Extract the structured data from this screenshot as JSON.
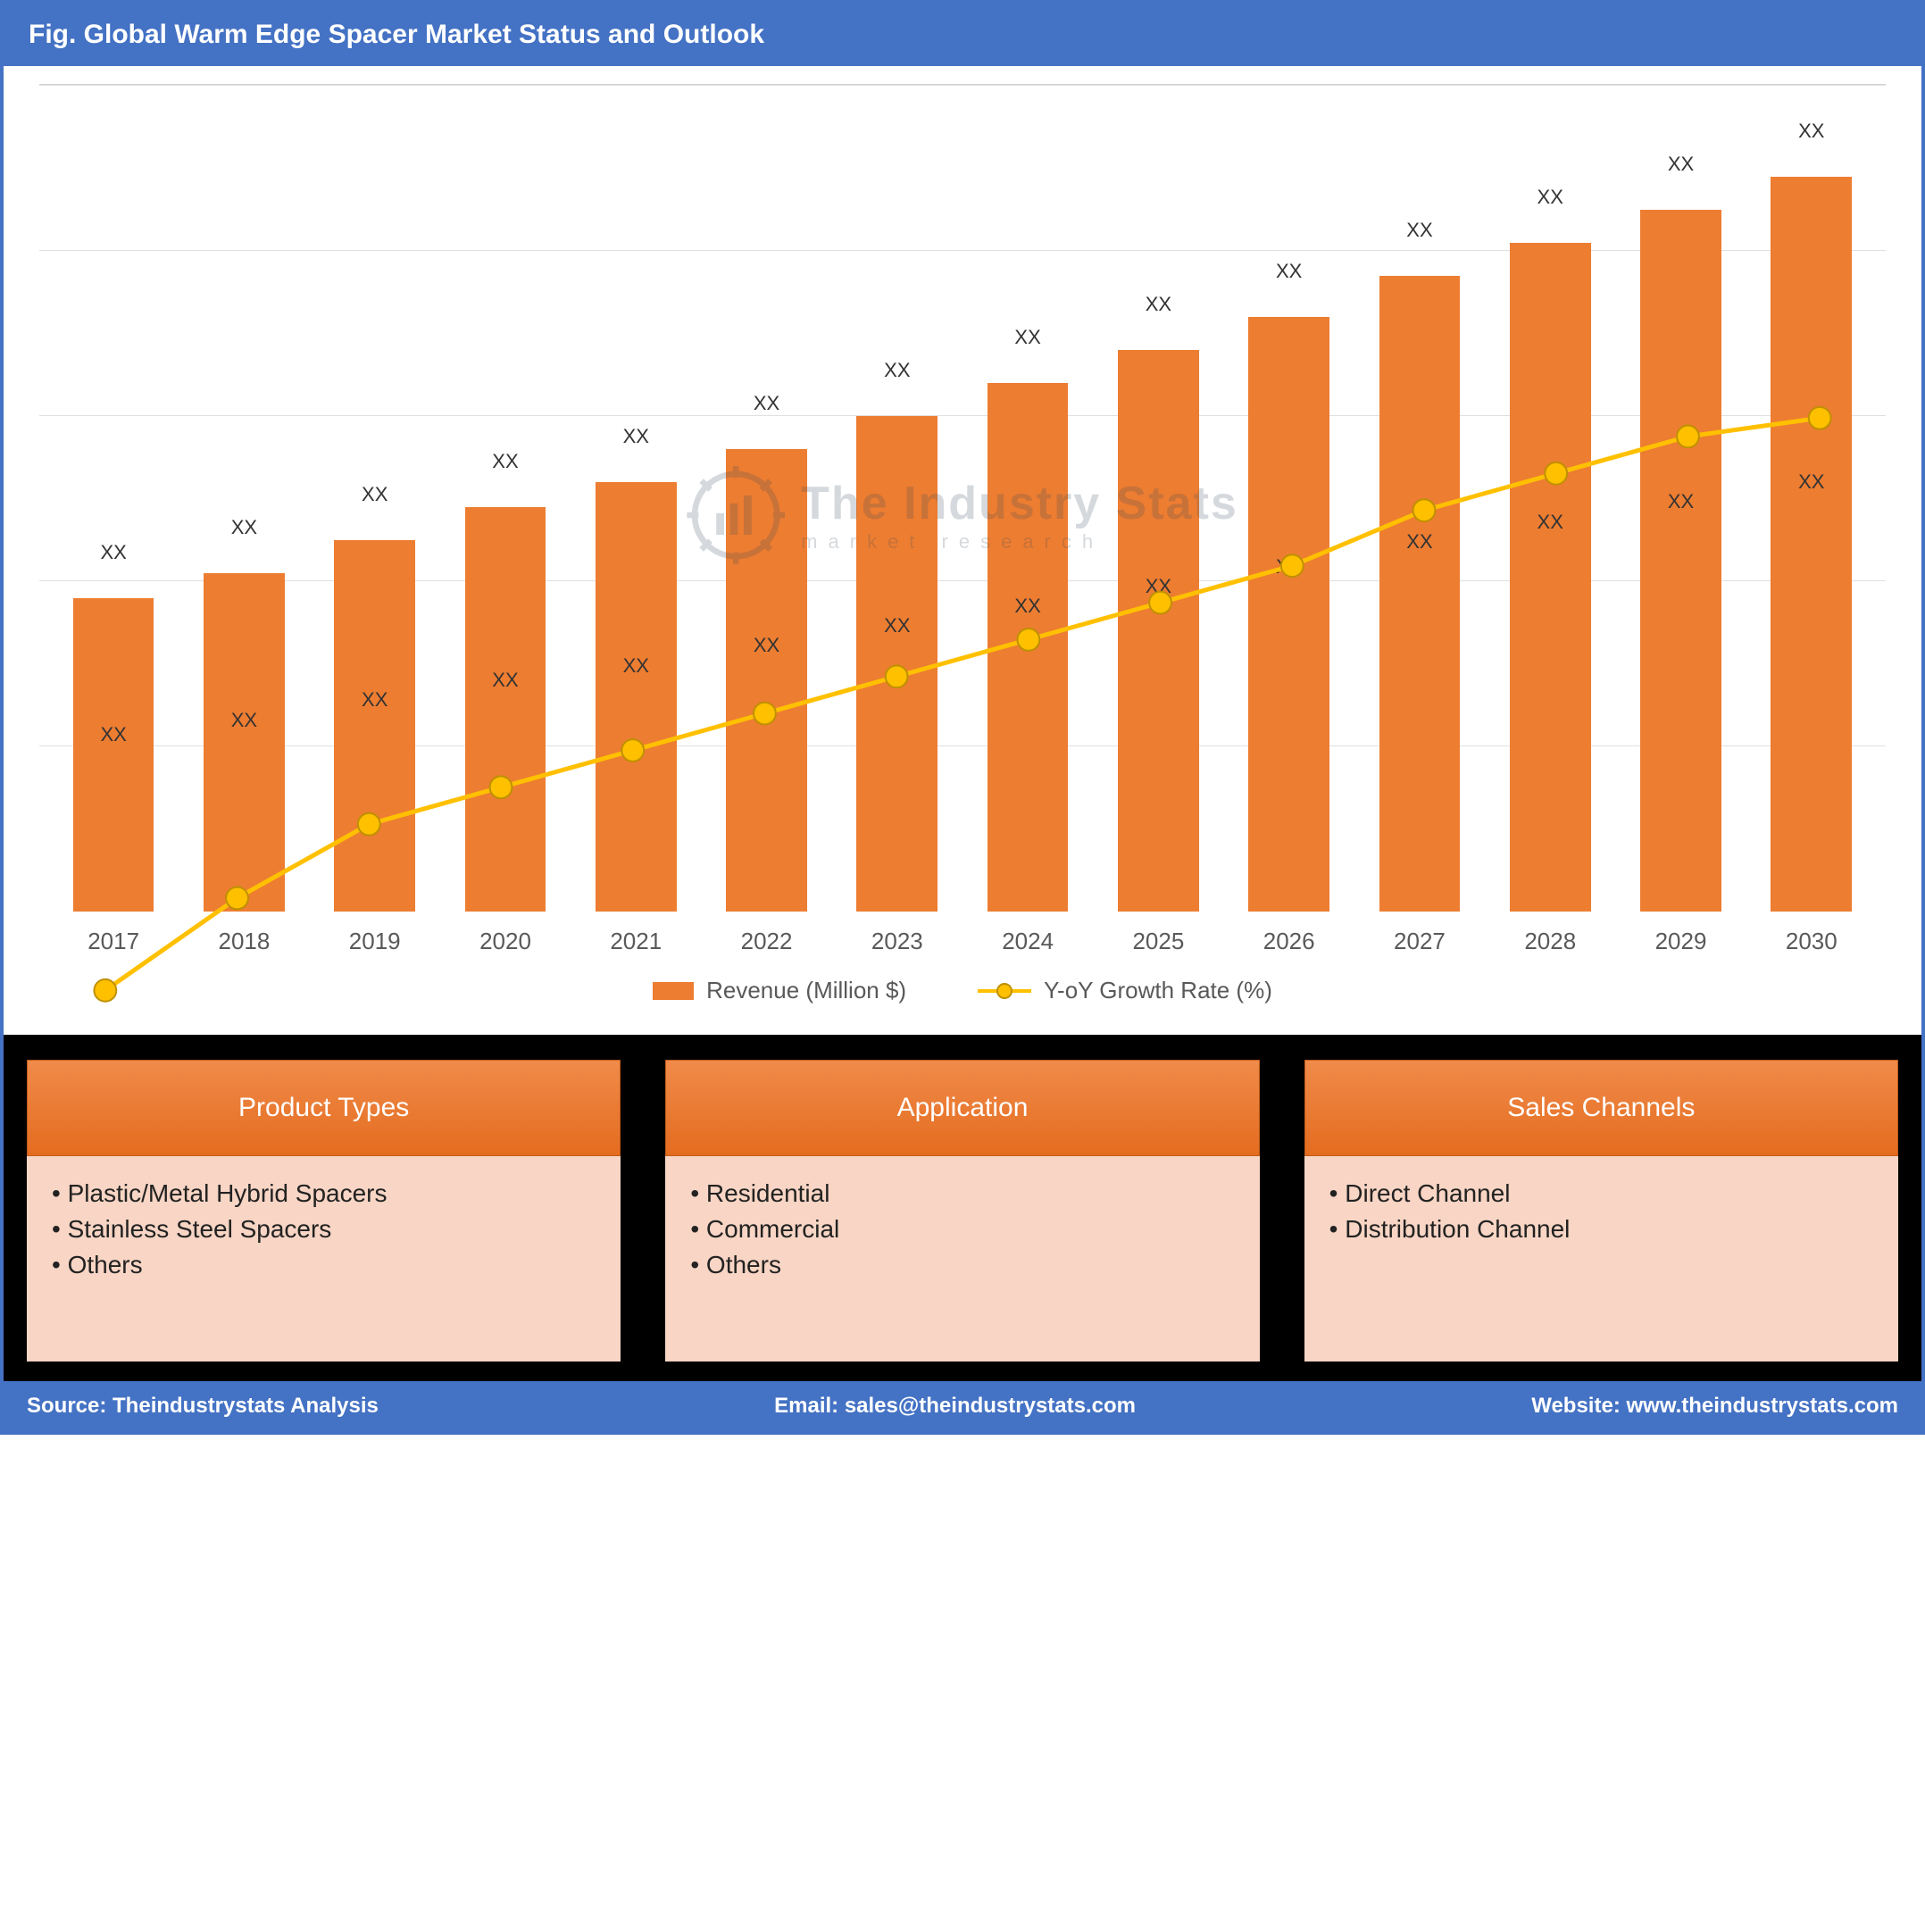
{
  "title": "Fig. Global Warm Edge Spacer Market Status and Outlook",
  "chart": {
    "type": "bar+line",
    "categories": [
      "2017",
      "2018",
      "2019",
      "2020",
      "2021",
      "2022",
      "2023",
      "2024",
      "2025",
      "2026",
      "2027",
      "2028",
      "2029",
      "2030"
    ],
    "bar_values": [
      38,
      41,
      45,
      49,
      52,
      56,
      60,
      64,
      68,
      72,
      77,
      81,
      85,
      89
    ],
    "bar_top_labels": [
      "XX",
      "XX",
      "XX",
      "XX",
      "XX",
      "XX",
      "XX",
      "XX",
      "XX",
      "XX",
      "XX",
      "XX",
      "XX",
      "XX"
    ],
    "bar_inner_labels": [
      "XX",
      "XX",
      "XX",
      "XX",
      "XX",
      "XX",
      "XX",
      "XX",
      "XX",
      "XX",
      "XX",
      "XX",
      "XX",
      "XX"
    ],
    "line_values": [
      51,
      56,
      60,
      62,
      64,
      66,
      68,
      70,
      72,
      74,
      77,
      79,
      81,
      82
    ],
    "ylim": [
      0,
      100
    ],
    "grid_steps": [
      20,
      40,
      60,
      80,
      100
    ],
    "bar_color": "#ed7d31",
    "line_color": "#ffc000",
    "line_marker_border": "#bf9000",
    "line_width": 5,
    "marker_radius": 9,
    "grid_color": "#e0e0e0",
    "background_color": "#ffffff",
    "x_tick_fontsize": 26,
    "data_label_fontsize": 22,
    "legend": {
      "bar_label": "Revenue (Million $)",
      "line_label": "Y-oY Growth Rate (%)"
    }
  },
  "watermark": {
    "main": "The Industry Stats",
    "sub": "market research"
  },
  "cards": [
    {
      "title": "Product Types",
      "items": [
        "Plastic/Metal Hybrid Spacers",
        "Stainless Steel Spacers",
        "Others"
      ]
    },
    {
      "title": "Application",
      "items": [
        "Residential",
        "Commercial",
        "Others"
      ]
    },
    {
      "title": "Sales Channels",
      "items": [
        "Direct Channel",
        "Distribution Channel"
      ]
    }
  ],
  "footer": {
    "source": "Source: Theindustrystats Analysis",
    "email": "Email: sales@theindustrystats.com",
    "website": "Website: www.theindustrystats.com"
  },
  "colors": {
    "header_bg": "#4472c4",
    "card_header_bg": "#ed7d31",
    "card_body_bg": "#f8d5c4",
    "page_border": "#4472c4",
    "black_bg": "#000000"
  }
}
